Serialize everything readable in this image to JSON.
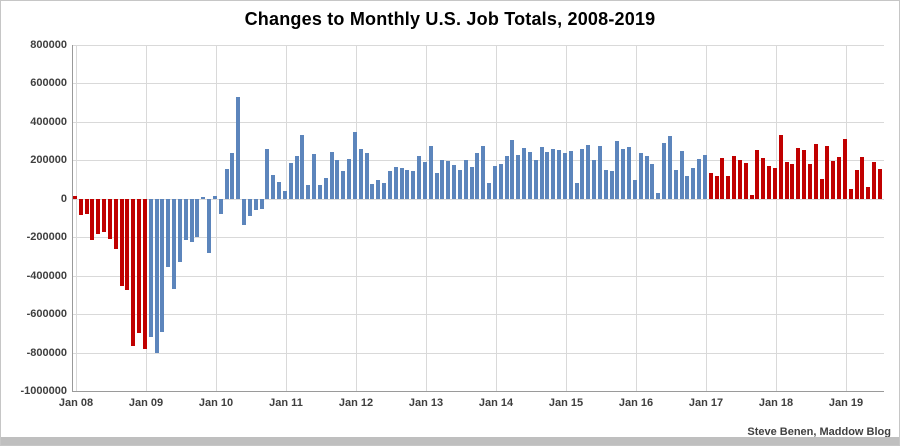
{
  "window": {
    "attribution": "Steve Benen, Maddow Blog"
  },
  "chart_data": {
    "type": "bar",
    "title": "Changes to Monthly U.S. Job Totals, 2008-2019",
    "xlabel": "",
    "ylabel": "",
    "unit": "monthly change in U.S. jobs",
    "grid": true,
    "legend": "none",
    "ylim": [
      -1000000,
      800000
    ],
    "y_ticks": [
      800000,
      600000,
      400000,
      200000,
      0,
      -200000,
      -400000,
      -600000,
      -800000,
      -1000000
    ],
    "y_tick_labels": [
      "800000",
      "600000",
      "400000",
      "200000",
      "0",
      "-200000",
      "-400000",
      "-600000",
      "-800000",
      "-1000000"
    ],
    "x_tick_labels": [
      "Jan 08",
      "Jan 09",
      "Jan 10",
      "Jan 11",
      "Jan 12",
      "Jan 13",
      "Jan 14",
      "Jan 15",
      "Jan 16",
      "Jan 17",
      "Jan 18",
      "Jan 19"
    ],
    "start_month": "Jan 2008",
    "end_month": "Jul 2019",
    "months_per_year": 12,
    "segments": [
      {
        "name": "through-jan-2009",
        "color": "#c00000",
        "from_index": 0,
        "to_index": 12
      },
      {
        "name": "feb-2009-to-jan-2017",
        "color": "#5c85bc",
        "from_index": 13,
        "to_index": 108
      },
      {
        "name": "feb-2017-to-jul-2019",
        "color": "#c00000",
        "from_index": 109,
        "to_index": 138
      }
    ],
    "values": [
      15000,
      -86000,
      -80000,
      -214000,
      -182000,
      -172000,
      -210000,
      -259000,
      -452000,
      -474000,
      -765000,
      -697000,
      -783000,
      -720000,
      -800000,
      -695000,
      -354000,
      -467000,
      -327000,
      -216000,
      -227000,
      -198000,
      10000,
      -283000,
      16000,
      -80000,
      157000,
      240000,
      530000,
      -135000,
      -90000,
      -60000,
      -55000,
      260000,
      123000,
      88000,
      42000,
      188000,
      225000,
      330000,
      73000,
      235000,
      70000,
      107000,
      246000,
      202000,
      146000,
      207000,
      350000,
      257000,
      239000,
      77000,
      100000,
      80000,
      144000,
      165000,
      160000,
      152000,
      146000,
      221000,
      190000,
      275000,
      135000,
      200000,
      199000,
      177000,
      149000,
      202000,
      164000,
      237000,
      274000,
      84000,
      170000,
      180000,
      225000,
      304000,
      229000,
      267000,
      243000,
      203000,
      271000,
      243000,
      261000,
      256000,
      240000,
      250000,
      84000,
      260000,
      280000,
      200000,
      277000,
      150000,
      145000,
      300000,
      260000,
      271000,
      100000,
      237000,
      225000,
      180000,
      30000,
      290000,
      325000,
      150000,
      250000,
      120000,
      160000,
      205000,
      230000,
      135000,
      120000,
      210000,
      120000,
      225000,
      200000,
      185000,
      18000,
      255000,
      210000,
      170000,
      160000,
      330000,
      190000,
      183000,
      265000,
      255000,
      183000,
      287000,
      103000,
      277000,
      195000,
      218000,
      310000,
      50000,
      152000,
      216000,
      61000,
      192000,
      157000
    ]
  }
}
